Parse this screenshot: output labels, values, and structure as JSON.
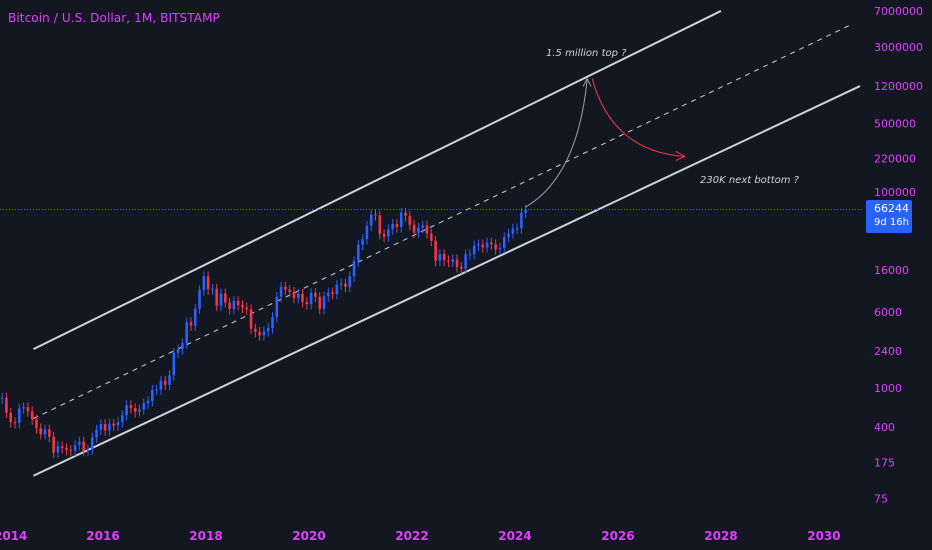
{
  "header": {
    "title": "Bitcoin / U.S. Dollar, 1M, BITSTAMP"
  },
  "price_badge": {
    "price": "66244",
    "countdown": "9d 16h",
    "color": "#2962ff"
  },
  "annotations": {
    "top": "1.5 million top ?",
    "bottom": "230K next bottom ?"
  },
  "colors": {
    "background": "#131722",
    "up": "#2962ff",
    "down": "#f23645",
    "label": "#e040fb",
    "channel": "#cfd2da",
    "arrow_up": "#9aa0ad",
    "arrow_down": "#f23645"
  },
  "chart_data": {
    "type": "candlestick",
    "title": "Bitcoin / U.S. Dollar, 1M, BITSTAMP",
    "scale": "log",
    "y_ticks": [
      75,
      175,
      400,
      1000,
      2400,
      6000,
      16000,
      100000,
      220000,
      500000,
      1200000,
      3000000,
      7000000
    ],
    "x_ticks": [
      "2014",
      "2016",
      "2018",
      "2020",
      "2022",
      "2024",
      "2026",
      "2028",
      "2030"
    ],
    "x_range": [
      2014,
      2030.7
    ],
    "y_range": [
      60,
      7500000
    ],
    "last_price": 66244,
    "channel": {
      "upper": [
        [
          2014.65,
          2500
        ],
        [
          2028.0,
          7000000
        ]
      ],
      "middle": [
        [
          2014.65,
          490
        ],
        [
          2030.5,
          5000000
        ]
      ],
      "lower": [
        [
          2014.65,
          128
        ],
        [
          2030.7,
          1200000
        ]
      ]
    },
    "projection": {
      "rise": {
        "from": [
          2024.2,
          70000
        ],
        "to": [
          2025.4,
          1500000
        ],
        "label": "1.5 million top ?"
      },
      "fall": {
        "from": [
          2025.5,
          1500000
        ],
        "to": [
          2027.3,
          230000
        ],
        "label": "230K next bottom ?"
      }
    },
    "monthly_close": [
      [
        "2014-01",
        800
      ],
      [
        "2014-02",
        560
      ],
      [
        "2014-03",
        450
      ],
      [
        "2014-04",
        440
      ],
      [
        "2014-05",
        620
      ],
      [
        "2014-06",
        640
      ],
      [
        "2014-07",
        580
      ],
      [
        "2014-08",
        480
      ],
      [
        "2014-09",
        390
      ],
      [
        "2014-10",
        340
      ],
      [
        "2014-11",
        380
      ],
      [
        "2014-12",
        320
      ],
      [
        "2015-01",
        220
      ],
      [
        "2015-02",
        255
      ],
      [
        "2015-03",
        245
      ],
      [
        "2015-04",
        235
      ],
      [
        "2015-05",
        230
      ],
      [
        "2015-06",
        263
      ],
      [
        "2015-07",
        285
      ],
      [
        "2015-08",
        230
      ],
      [
        "2015-09",
        237
      ],
      [
        "2015-10",
        315
      ],
      [
        "2015-11",
        378
      ],
      [
        "2015-12",
        430
      ],
      [
        "2016-01",
        370
      ],
      [
        "2016-02",
        435
      ],
      [
        "2016-03",
        415
      ],
      [
        "2016-04",
        450
      ],
      [
        "2016-05",
        530
      ],
      [
        "2016-06",
        670
      ],
      [
        "2016-07",
        625
      ],
      [
        "2016-08",
        575
      ],
      [
        "2016-09",
        608
      ],
      [
        "2016-10",
        700
      ],
      [
        "2016-11",
        740
      ],
      [
        "2016-12",
        963
      ],
      [
        "2017-01",
        965
      ],
      [
        "2017-02",
        1190
      ],
      [
        "2017-03",
        1080
      ],
      [
        "2017-04",
        1350
      ],
      [
        "2017-05",
        2300
      ],
      [
        "2017-06",
        2480
      ],
      [
        "2017-07",
        2870
      ],
      [
        "2017-08",
        4700
      ],
      [
        "2017-09",
        4340
      ],
      [
        "2017-10",
        6450
      ],
      [
        "2017-11",
        10000
      ],
      [
        "2017-12",
        13800
      ],
      [
        "2018-01",
        10200
      ],
      [
        "2018-02",
        10300
      ],
      [
        "2018-03",
        6930
      ],
      [
        "2018-04",
        9250
      ],
      [
        "2018-05",
        7500
      ],
      [
        "2018-06",
        6400
      ],
      [
        "2018-07",
        7730
      ],
      [
        "2018-08",
        7030
      ],
      [
        "2018-09",
        6630
      ],
      [
        "2018-10",
        6370
      ],
      [
        "2018-11",
        4040
      ],
      [
        "2018-12",
        3740
      ],
      [
        "2019-01",
        3450
      ],
      [
        "2019-02",
        3800
      ],
      [
        "2019-03",
        4100
      ],
      [
        "2019-04",
        5300
      ],
      [
        "2019-05",
        8550
      ],
      [
        "2019-06",
        10800
      ],
      [
        "2019-07",
        10100
      ],
      [
        "2019-08",
        9600
      ],
      [
        "2019-09",
        8300
      ],
      [
        "2019-10",
        9150
      ],
      [
        "2019-11",
        7550
      ],
      [
        "2019-12",
        7200
      ],
      [
        "2020-01",
        9350
      ],
      [
        "2020-02",
        8550
      ],
      [
        "2020-03",
        6420
      ],
      [
        "2020-04",
        8620
      ],
      [
        "2020-05",
        9450
      ],
      [
        "2020-06",
        9140
      ],
      [
        "2020-07",
        11350
      ],
      [
        "2020-08",
        11650
      ],
      [
        "2020-09",
        10780
      ],
      [
        "2020-10",
        13800
      ],
      [
        "2020-11",
        19700
      ],
      [
        "2020-12",
        28990
      ],
      [
        "2021-01",
        33100
      ],
      [
        "2021-02",
        45200
      ],
      [
        "2021-03",
        58800
      ],
      [
        "2021-04",
        57700
      ],
      [
        "2021-05",
        37300
      ],
      [
        "2021-06",
        35000
      ],
      [
        "2021-07",
        41500
      ],
      [
        "2021-08",
        47100
      ],
      [
        "2021-09",
        43800
      ],
      [
        "2021-10",
        61300
      ],
      [
        "2021-11",
        57000
      ],
      [
        "2021-12",
        46200
      ],
      [
        "2022-01",
        38500
      ],
      [
        "2022-02",
        43200
      ],
      [
        "2022-03",
        45500
      ],
      [
        "2022-04",
        37700
      ],
      [
        "2022-05",
        31800
      ],
      [
        "2022-06",
        19900
      ],
      [
        "2022-07",
        23300
      ],
      [
        "2022-08",
        20050
      ],
      [
        "2022-09",
        19400
      ],
      [
        "2022-10",
        20500
      ],
      [
        "2022-11",
        17200
      ],
      [
        "2022-12",
        16550
      ],
      [
        "2023-01",
        23100
      ],
      [
        "2023-02",
        23150
      ],
      [
        "2023-03",
        28500
      ],
      [
        "2023-04",
        29250
      ],
      [
        "2023-05",
        27200
      ],
      [
        "2023-06",
        30450
      ],
      [
        "2023-07",
        29250
      ],
      [
        "2023-08",
        25950
      ],
      [
        "2023-09",
        26960
      ],
      [
        "2023-10",
        34650
      ],
      [
        "2023-11",
        37700
      ],
      [
        "2023-12",
        42270
      ],
      [
        "2024-01",
        42600
      ],
      [
        "2024-02",
        61200
      ],
      [
        "2024-03",
        66244
      ]
    ]
  }
}
